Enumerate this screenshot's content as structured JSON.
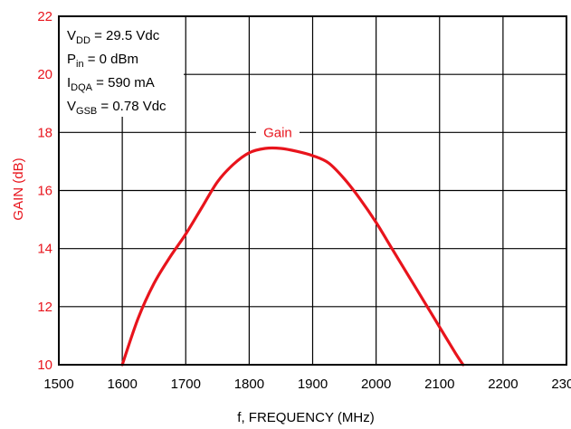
{
  "chart_data": {
    "type": "line",
    "title": "",
    "xlabel": "f, FREQUENCY (MHz)",
    "ylabel": "GAIN (dB)",
    "xlim": [
      1500,
      2300
    ],
    "ylim": [
      10,
      22
    ],
    "x_ticks": [
      "1500",
      "1600",
      "1700",
      "1800",
      "1900",
      "2000",
      "2100",
      "2200",
      "2300"
    ],
    "y_ticks": [
      "10",
      "12",
      "14",
      "16",
      "18",
      "20",
      "22"
    ],
    "grid": true,
    "colors": {
      "series": "#e8141c",
      "grid": "#000000",
      "ylabel": "#e8141c"
    },
    "conditions": [
      {
        "main": "V",
        "sub": "DD",
        "rest": " = 29.5 Vdc"
      },
      {
        "main": "P",
        "sub": "in",
        "rest": " = 0 dBm"
      },
      {
        "main": "I",
        "sub": "DQA",
        "rest": " = 590 mA"
      },
      {
        "main": "V",
        "sub": "GSB",
        "rest": " = 0.78 Vdc"
      }
    ],
    "series": [
      {
        "name": "Gain",
        "x": [
          1600,
          1625,
          1650,
          1675,
          1700,
          1725,
          1750,
          1775,
          1800,
          1825,
          1850,
          1875,
          1900,
          1925,
          1950,
          1975,
          2000,
          2025,
          2050,
          2075,
          2100,
          2125,
          2137
        ],
        "values": [
          10.0,
          11.6,
          12.8,
          13.7,
          14.5,
          15.4,
          16.3,
          16.9,
          17.3,
          17.45,
          17.45,
          17.35,
          17.2,
          16.95,
          16.4,
          15.7,
          14.9,
          14.0,
          13.1,
          12.2,
          11.3,
          10.4,
          10.0
        ]
      }
    ]
  }
}
